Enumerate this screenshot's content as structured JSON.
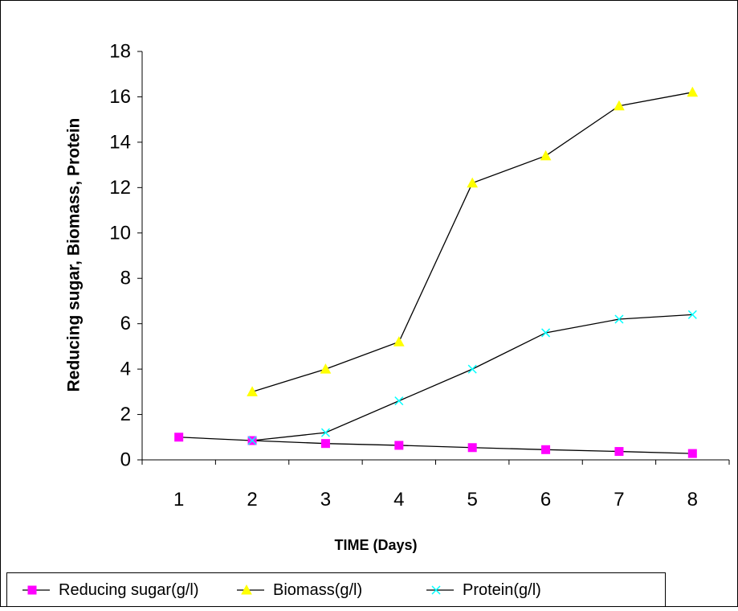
{
  "chart_data": {
    "type": "line",
    "title": "",
    "xlabel": "TIME (Days)",
    "ylabel": "Reducing sugar, Biomass, Protein",
    "categories": [
      "1",
      "2",
      "3",
      "4",
      "5",
      "6",
      "7",
      "8"
    ],
    "ylim": [
      0,
      18
    ],
    "yticks": [
      "0",
      "2",
      "4",
      "6",
      "8",
      "10",
      "12",
      "14",
      "16",
      "18"
    ],
    "grid": false,
    "legend_position": "bottom",
    "series": [
      {
        "name": "Reducing sugar(g/l)",
        "marker": "square",
        "color": "#ff00ff",
        "line_color": "#000000",
        "values": [
          1.0,
          0.85,
          0.72,
          0.64,
          0.54,
          0.45,
          0.37,
          0.28
        ]
      },
      {
        "name": "Biomass(g/l)",
        "marker": "triangle",
        "color": "#ffff00",
        "line_color": "#000000",
        "values": [
          null,
          3.0,
          4.0,
          5.2,
          12.2,
          13.4,
          15.6,
          16.2
        ]
      },
      {
        "name": "Protein(g/l)",
        "marker": "x",
        "color": "#00ffff",
        "line_color": "#000000",
        "values": [
          null,
          0.85,
          1.2,
          2.6,
          4.0,
          5.6,
          6.2,
          6.4
        ]
      }
    ]
  }
}
